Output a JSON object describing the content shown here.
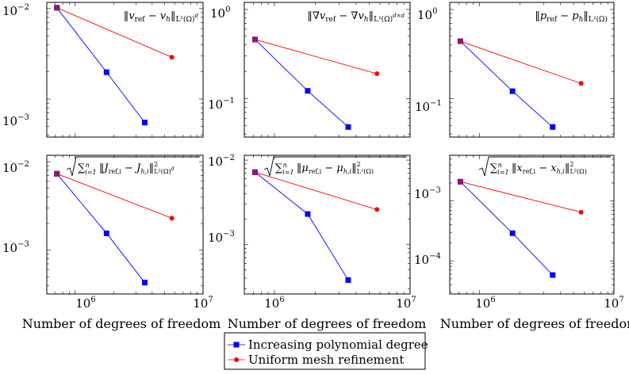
{
  "legend": {
    "placement": "bottom-center",
    "entries": [
      {
        "label": "Increasing polynomial degree",
        "color": "#0000ff",
        "marker": "square"
      },
      {
        "label": "Uniform mesh refinement",
        "color": "#ff0000",
        "marker": "circle"
      }
    ]
  },
  "colors": {
    "poly": "#0000ff",
    "mesh": "#ff0000",
    "grid_frame": "#000000"
  },
  "chart_data": [
    {
      "type": "line",
      "xscale": "log",
      "yscale": "log",
      "title": "‖v_ref − v_h‖_{L²(Ω)^d}",
      "xlim": [
        600000,
        10000000
      ],
      "ylim": [
        0.00038,
        0.0117
      ],
      "xticks": [
        "10^6",
        "10^7"
      ],
      "yticks": [
        "10^-2",
        "10^-3"
      ],
      "xtick_values": [
        1000000,
        10000000
      ],
      "ytick_values": [
        0.01,
        0.001
      ],
      "xlabel": "",
      "series": [
        {
          "name": "Increasing polynomial degree",
          "x": [
            720000,
            1760000,
            3500000
          ],
          "y": [
            0.0102,
            0.00198,
            0.00055
          ]
        },
        {
          "name": "Uniform mesh refinement",
          "x": [
            720000,
            5700000
          ],
          "y": [
            0.0102,
            0.0029
          ]
        }
      ]
    },
    {
      "type": "line",
      "xscale": "log",
      "yscale": "log",
      "title": "‖∇v_ref − ∇v_h‖_{L²(Ω)^{d×d}}",
      "xlim": [
        600000,
        10000000
      ],
      "ylim": [
        0.037,
        1.2
      ],
      "xticks": [],
      "yticks": [
        "10^0",
        "10^-1"
      ],
      "xtick_values": [],
      "ytick_values": [
        1,
        0.1
      ],
      "xlabel": "",
      "series": [
        {
          "name": "Increasing polynomial degree",
          "x": [
            720000,
            1760000,
            3500000
          ],
          "y": [
            0.46,
            0.122,
            0.048
          ]
        },
        {
          "name": "Uniform mesh refinement",
          "x": [
            720000,
            5700000
          ],
          "y": [
            0.46,
            0.19
          ]
        }
      ]
    },
    {
      "type": "line",
      "xscale": "log",
      "yscale": "log",
      "title": "‖p_ref − p_h‖_{L²(Ω)}",
      "xlim": [
        600000,
        10000000
      ],
      "ylim": [
        0.037,
        1.2
      ],
      "xticks": [],
      "yticks": [
        "10^0",
        "10^-1"
      ],
      "xtick_values": [],
      "ytick_values": [
        1,
        0.1
      ],
      "xlabel": "",
      "series": [
        {
          "name": "Increasing polynomial degree",
          "x": [
            720000,
            1760000,
            3500000
          ],
          "y": [
            0.44,
            0.121,
            0.048
          ]
        },
        {
          "name": "Uniform mesh refinement",
          "x": [
            720000,
            5700000
          ],
          "y": [
            0.44,
            0.148
          ]
        }
      ]
    },
    {
      "type": "line",
      "xscale": "log",
      "yscale": "log",
      "title": "√(Σ_{i=1}^n ‖J_ref,i − J_h,i‖²_{L²(Ω)^d})",
      "xlim": [
        600000,
        10000000
      ],
      "ylim": [
        0.00032,
        0.0118
      ],
      "xticks": [
        "10^6",
        "10^7"
      ],
      "yticks": [
        "10^-2",
        "10^-3"
      ],
      "xtick_values": [
        1000000,
        10000000
      ],
      "ytick_values": [
        0.01,
        0.001
      ],
      "xlabel": "Number of degrees of freedom",
      "series": [
        {
          "name": "Increasing polynomial degree",
          "x": [
            720000,
            1760000,
            3500000
          ],
          "y": [
            0.0073,
            0.00155,
            0.00043
          ]
        },
        {
          "name": "Uniform mesh refinement",
          "x": [
            720000,
            5700000
          ],
          "y": [
            0.0073,
            0.0023
          ]
        }
      ]
    },
    {
      "type": "line",
      "xscale": "log",
      "yscale": "log",
      "title": "√(Σ_{i=1}^n ‖μ_ref,i − μ_h,i‖²_{L²(Ω)})",
      "xlim": [
        600000,
        10000000
      ],
      "ylim": [
        0.00026,
        0.0114
      ],
      "xticks": [
        "10^6",
        "10^7"
      ],
      "yticks": [
        "10^-2",
        "10^-3"
      ],
      "xtick_values": [
        1000000,
        10000000
      ],
      "ytick_values": [
        0.01,
        0.001
      ],
      "xlabel": "Number of degrees of freedom",
      "series": [
        {
          "name": "Increasing polynomial degree",
          "x": [
            720000,
            1760000,
            3500000
          ],
          "y": [
            0.0072,
            0.0023,
            0.00038
          ]
        },
        {
          "name": "Uniform mesh refinement",
          "x": [
            720000,
            5700000
          ],
          "y": [
            0.0072,
            0.0026
          ]
        }
      ]
    },
    {
      "type": "line",
      "xscale": "log",
      "yscale": "log",
      "title": "√(Σ_{i=1}^n ‖x_ref,i − x_h,i‖²_{L²(Ω)})",
      "xlim": [
        600000,
        10000000
      ],
      "ylim": [
        2.8e-05,
        0.0058
      ],
      "xticks": [
        "10^6",
        "10^7"
      ],
      "yticks": [
        "10^-3",
        "10^-4"
      ],
      "xtick_values": [
        1000000,
        10000000
      ],
      "ytick_values": [
        0.001,
        0.0001
      ],
      "xlabel": "Number of degrees of freedom",
      "series": [
        {
          "name": "Increasing polynomial degree",
          "x": [
            720000,
            1760000,
            3500000
          ],
          "y": [
            0.0021,
            0.00029,
            5.8e-05
          ]
        },
        {
          "name": "Uniform mesh refinement",
          "x": [
            720000,
            5700000
          ],
          "y": [
            0.0021,
            0.00065
          ]
        }
      ]
    }
  ]
}
